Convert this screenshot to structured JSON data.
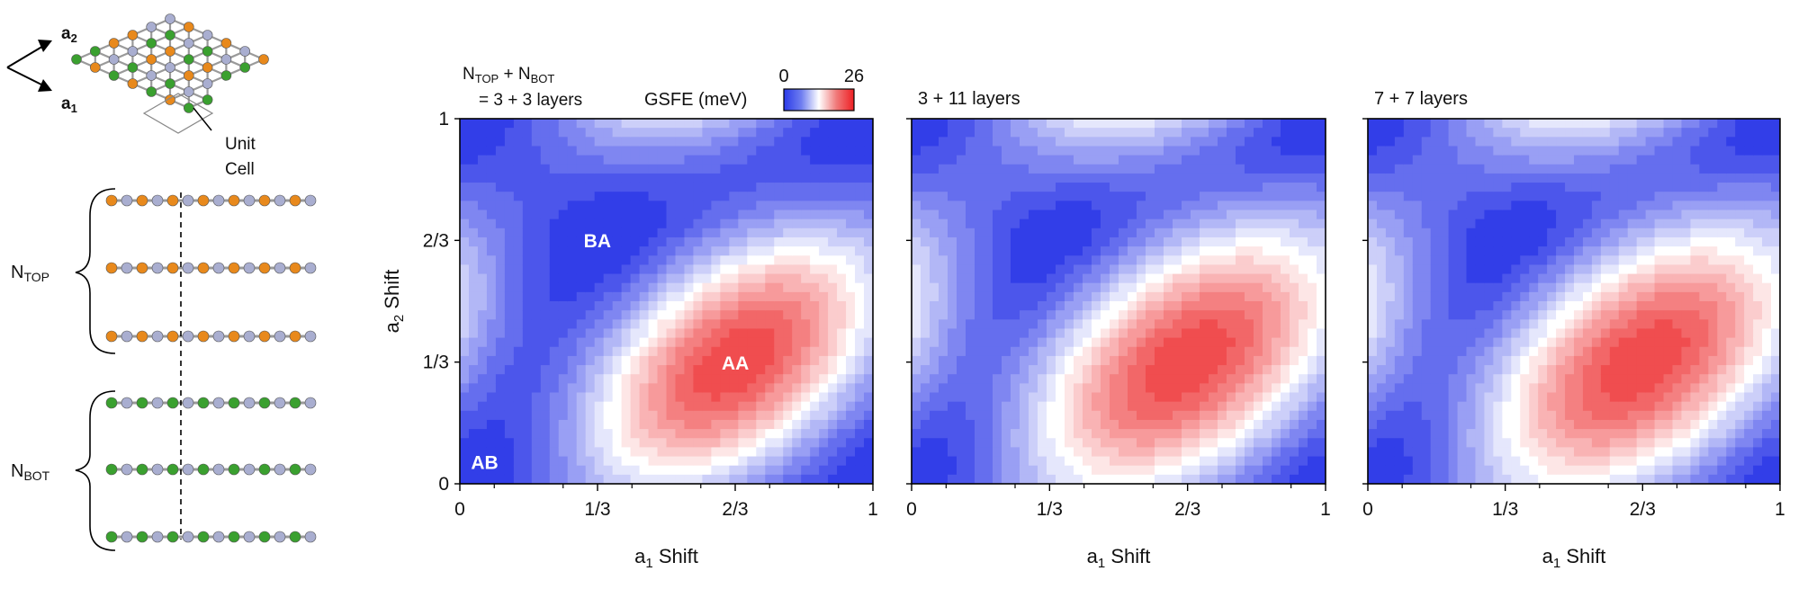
{
  "structure_panel": {
    "vector_a2": "a",
    "vector_a2_sub": "2",
    "vector_a1": "a",
    "vector_a1_sub": "1",
    "unit_cell_line1": "Unit",
    "unit_cell_line2": "Cell",
    "ntop_main": "N",
    "ntop_sub": "TOP",
    "nbot_main": "N",
    "nbot_sub": "BOT",
    "colors": {
      "top_atom": "#e8891c",
      "bottom_atom": "#3aa02f",
      "shared_atom": "#a9aed0"
    }
  },
  "colorbar": {
    "label": "GSFE (meV)",
    "min_label": "0",
    "max_label": "26",
    "colors": [
      "#3344ee",
      "#ffffff",
      "#ee2222"
    ]
  },
  "legend_header": {
    "line1_main1": "N",
    "line1_sub1": "TOP",
    "line1_plus": " + N",
    "line1_sub2": "BOT",
    "line2": "= 3 + 3 layers"
  },
  "chart_data": [
    {
      "type": "heatmap",
      "title": "",
      "xlabel_main": "a",
      "xlabel_sub": "1",
      "xlabel_rest": " Shift",
      "ylabel_main": "a",
      "ylabel_sub": "2",
      "ylabel_rest": " Shift",
      "xticks": [
        "0",
        "1/3",
        "2/3",
        "1"
      ],
      "yticks": [
        "0",
        "1/3",
        "2/3",
        "1"
      ],
      "xlim": [
        0,
        1
      ],
      "ylim": [
        0,
        1
      ],
      "zlim": [
        0,
        26
      ],
      "zunit": "meV",
      "annotations": [
        {
          "text": "AA",
          "x": 0.667,
          "y": 0.333
        },
        {
          "text": "BA",
          "x": 0.333,
          "y": 0.667
        },
        {
          "text": "AB",
          "x": 0.06,
          "y": 0.06
        }
      ],
      "peak_value": 26,
      "peak_location": [
        0.667,
        0.333
      ]
    },
    {
      "type": "heatmap",
      "title": "3 + 11 layers",
      "xlabel_main": "a",
      "xlabel_sub": "1",
      "xlabel_rest": " Shift",
      "xticks": [
        "0",
        "1/3",
        "2/3",
        "1"
      ],
      "xlim": [
        0,
        1
      ],
      "ylim": [
        0,
        1
      ],
      "zlim": [
        0,
        26
      ],
      "zunit": "meV",
      "peak_value": 26,
      "peak_location": [
        0.667,
        0.333
      ]
    },
    {
      "type": "heatmap",
      "title": "7 + 7 layers",
      "xlabel_main": "a",
      "xlabel_sub": "1",
      "xlabel_rest": " Shift",
      "xticks": [
        "0",
        "1/3",
        "2/3",
        "1"
      ],
      "xlim": [
        0,
        1
      ],
      "ylim": [
        0,
        1
      ],
      "zlim": [
        0,
        26
      ],
      "zunit": "meV",
      "peak_value": 26,
      "peak_location": [
        0.667,
        0.333
      ]
    }
  ]
}
